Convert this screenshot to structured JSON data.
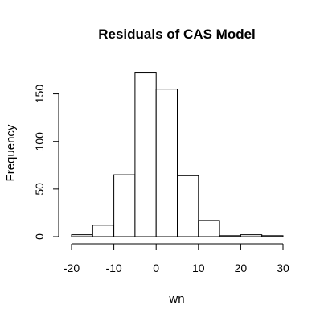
{
  "chart_data": {
    "type": "bar",
    "title": "Residuals of CAS Model",
    "xlabel": "wn",
    "ylabel": "Frequency",
    "bin_edges": [
      -20,
      -15,
      -10,
      -5,
      0,
      5,
      10,
      15,
      20,
      25,
      30
    ],
    "values": [
      2,
      12,
      65,
      172,
      155,
      64,
      17,
      1,
      2,
      1
    ],
    "xlim": [
      -20,
      30
    ],
    "ylim": [
      0,
      175
    ],
    "xticks": [
      -20,
      -10,
      0,
      10,
      20,
      30
    ],
    "yticks": [
      0,
      50,
      100,
      150
    ],
    "grid": false,
    "legend": "none",
    "bar_fill": "#ffffff",
    "bar_stroke": "#000000"
  }
}
